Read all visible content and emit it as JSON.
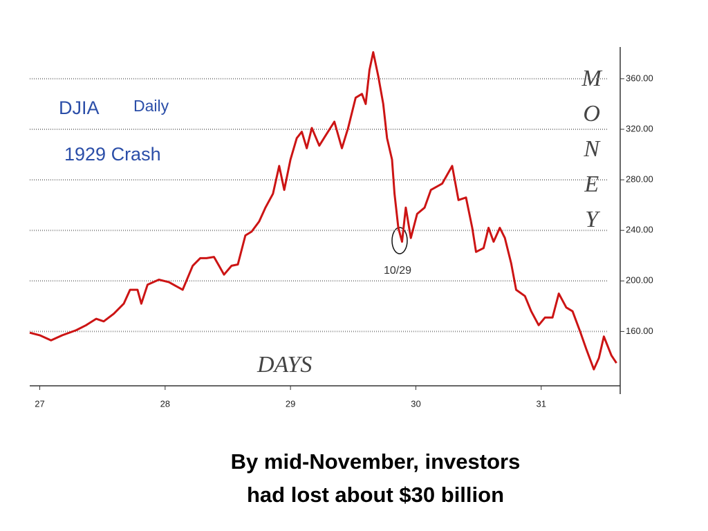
{
  "chart_data": {
    "type": "line",
    "title": "DJIA",
    "subtitle": "Daily",
    "annotation": "1929 Crash",
    "y_label": "MONEY",
    "x_label": "DAYS",
    "point_label": "10/29",
    "caption": [
      "By mid-November, investors",
      "had lost about $30 billion"
    ],
    "xlim": [
      26.92,
      31.63
    ],
    "ylim": [
      117,
      384
    ],
    "xticks": [
      27,
      28,
      29,
      30,
      31
    ],
    "yticks": [
      {
        "value": 160,
        "label": "160.00"
      },
      {
        "value": 200,
        "label": "200.00"
      },
      {
        "value": 240,
        "label": "240.00"
      },
      {
        "value": 280,
        "label": "280.00"
      },
      {
        "value": 320,
        "label": "320.00"
      },
      {
        "value": 360,
        "label": "360.00"
      }
    ],
    "grid": true,
    "series": [
      {
        "color": "#cc1414",
        "x": [
          26.92,
          27.0,
          27.09,
          27.18,
          27.29,
          27.37,
          27.45,
          27.51,
          27.59,
          27.67,
          27.72,
          27.78,
          27.81,
          27.86,
          27.95,
          28.03,
          28.14,
          28.22,
          28.28,
          28.33,
          28.39,
          28.43,
          28.47,
          28.53,
          28.58,
          28.64,
          28.69,
          28.75,
          28.8,
          28.86,
          28.91,
          28.95,
          29.0,
          29.05,
          29.09,
          29.13,
          29.17,
          29.23,
          29.28,
          29.35,
          29.41,
          29.46,
          29.52,
          29.57,
          29.6,
          29.63,
          29.66,
          29.7,
          29.74,
          29.77,
          29.81,
          29.83,
          29.86,
          29.89,
          29.92,
          29.96,
          30.01,
          30.07,
          30.12,
          30.21,
          30.29,
          30.34,
          30.4,
          30.45,
          30.48,
          30.54,
          30.58,
          30.62,
          30.67,
          30.71,
          30.76,
          30.8,
          30.87,
          30.92,
          30.98,
          31.03,
          31.09,
          31.14,
          31.2,
          31.25,
          31.31,
          31.36,
          31.42,
          31.46,
          31.5,
          31.56,
          31.6
        ],
        "values": [
          159,
          157,
          153,
          157,
          161,
          165,
          170,
          168,
          174,
          182,
          193,
          193,
          182,
          197,
          201,
          199,
          193,
          212,
          218,
          218,
          219,
          212,
          205,
          212,
          213,
          236,
          239,
          247,
          258,
          269,
          291,
          272,
          296,
          313,
          318,
          305,
          321,
          307,
          315,
          326,
          305,
          321,
          345,
          348,
          340,
          367,
          381,
          362,
          340,
          313,
          296,
          269,
          242,
          231,
          258,
          234,
          253,
          258,
          272,
          277,
          291,
          264,
          266,
          242,
          223,
          226,
          242,
          231,
          242,
          234,
          214,
          193,
          188,
          176,
          165,
          171,
          171,
          190,
          179,
          176,
          160,
          146,
          130,
          139,
          156,
          141,
          135
        ]
      }
    ]
  }
}
